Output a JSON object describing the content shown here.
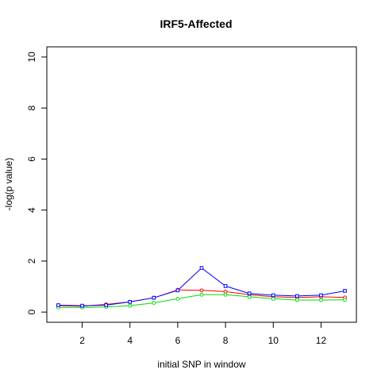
{
  "chart_data": {
    "type": "line",
    "title": "IRF5-Affected",
    "xlabel": "initial SNP in window",
    "ylabel": "-log(p value)",
    "xlim": [
      0.52,
      13.48
    ],
    "ylim": [
      -0.4,
      10.4
    ],
    "xticks": [
      2,
      4,
      6,
      8,
      10,
      12
    ],
    "yticks": [
      0,
      2,
      4,
      6,
      8,
      10
    ],
    "x": [
      1,
      2,
      3,
      4,
      5,
      6,
      7,
      8,
      9,
      10,
      11,
      12,
      13
    ],
    "grid": false,
    "series": [
      {
        "color": "#ff0000",
        "marker": "circle",
        "values": [
          0.25,
          0.23,
          0.3,
          0.4,
          0.56,
          0.87,
          0.85,
          0.8,
          0.68,
          0.6,
          0.57,
          0.6,
          0.57
        ]
      },
      {
        "color": "#00dd00",
        "marker": "circle",
        "values": [
          0.18,
          0.18,
          0.2,
          0.25,
          0.36,
          0.52,
          0.68,
          0.68,
          0.6,
          0.52,
          0.47,
          0.47,
          0.48
        ]
      },
      {
        "color": "#0000ff",
        "marker": "square",
        "values": [
          0.27,
          0.25,
          0.27,
          0.4,
          0.56,
          0.85,
          1.73,
          1.02,
          0.73,
          0.66,
          0.63,
          0.66,
          0.83
        ]
      }
    ]
  }
}
